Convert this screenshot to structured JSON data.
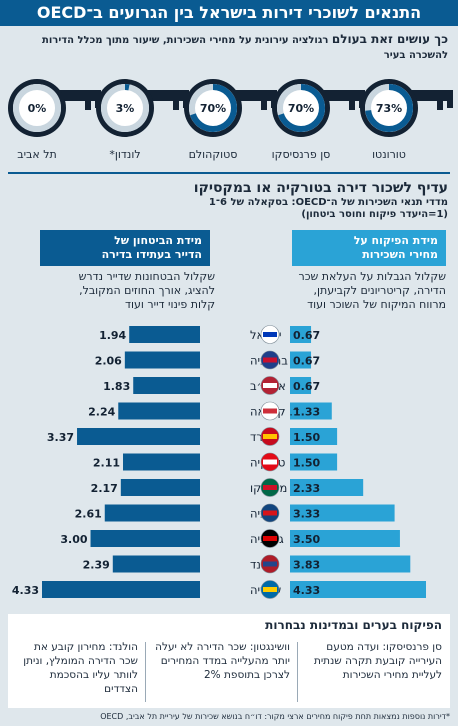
{
  "title": "התנאים לשוכרי דירות בישראל בין הגרועים ב־OECD",
  "intro": {
    "lead": "כך עושים זאת בעולם",
    "rest": "רגולציה עירונית על מחירי השכירות, שיעור מתוך מכלל הדירות להשכרה בעיר"
  },
  "cities": [
    {
      "name": "טורונטו",
      "pct": "73%",
      "value": 73
    },
    {
      "name": "סן פרנסיסקו",
      "pct": "70%",
      "value": 70
    },
    {
      "name": "סטוקהולם",
      "pct": "70%",
      "value": 70
    },
    {
      "name": "לונדון*",
      "pct": "3%",
      "value": 3
    },
    {
      "name": "תל אביב",
      "pct": "0%",
      "value": 0
    }
  ],
  "section2": {
    "title": "עדיף לשכור דירה בטורקיה או במקסיקו",
    "subtitle": "מדדי תנאי השכירות של ה־OECD: בסקאלה של 6־1",
    "subtitle2": "(1=היעדר פיקוח וחוסר ביטחון)"
  },
  "columns": {
    "right_head_line1": "מידת הפיקוח על",
    "right_head_line2": "מחירי השכירות",
    "right_text": [
      "שקלול הגבלות על העלאת שכר",
      "הדירה, קריטריונים לקביעתן,",
      "מרווח המיקוח של השוכר ועוד"
    ],
    "left_head_line1": "מידת הביטחון של",
    "left_head_line2": "הדייר בעתידו בדירה",
    "left_text": [
      "שקלול הבטחונות שדייר נדרש",
      "להציג, אורך החוזים המקובל,",
      "קלות פינוי דייר ועוד"
    ]
  },
  "chart_data": {
    "type": "bar",
    "categories": [
      "ישראל",
      "בריטניה",
      "ארה״ב",
      "ד. קוריאה",
      "ספרד",
      "טורקיה",
      "מקסיקו",
      "צ׳כיה",
      "גרמניה",
      "הולנד",
      "שבדיה"
    ],
    "series": [
      {
        "name": "מידת הפיקוח על מחירי השכירות",
        "values": [
          0.67,
          0.67,
          0.67,
          1.33,
          1.5,
          1.5,
          2.33,
          3.33,
          3.5,
          3.83,
          4.33
        ]
      },
      {
        "name": "מידת הביטחון של הדייר בעתידו בדירה",
        "values": [
          1.94,
          2.06,
          1.83,
          2.24,
          3.37,
          2.11,
          2.17,
          2.61,
          3.0,
          2.39,
          4.33
        ]
      }
    ],
    "labels_control": [
      "0.67",
      "0.67",
      "0.67",
      "1.33",
      "1.50",
      "1.50",
      "2.33",
      "3.33",
      "3.50",
      "3.83",
      "4.33"
    ],
    "labels_security": [
      "1.94",
      "2.06",
      "1.83",
      "2.24",
      "3.37",
      "2.11",
      "2.17",
      "2.61",
      "3.00",
      "2.39",
      "4.33"
    ],
    "scale": [
      1,
      6
    ],
    "colors": {
      "control": "#2aa3d6",
      "security": "#0a5b92"
    }
  },
  "notes": {
    "title": "הפיקוח בערים ובמדינות נבחרות",
    "items": [
      "סן פרנסיסקו: ועדה מטעם העירייה קובעת תקרה שנתית לעליית מחירי השכירות",
      "וושינגטון: שכר הדירה לא יעלה יותר מהעלייה במדד המחירים לצרכן בתוספת 2%",
      "הולנד: מחירון קובע את שכר הדירה המומלץ, וניתן לוותר עליו בהסכמת הצדדים"
    ]
  },
  "footer": "*דירות נוספות נמצאות תחת פיקוח מחירים ארצי מקור: דו״ח בנושא שכירות של עיריית תל אביב, OECD"
}
